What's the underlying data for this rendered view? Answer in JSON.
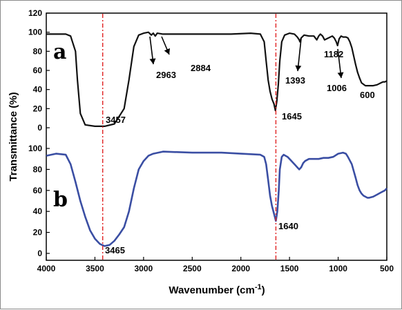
{
  "chart_data": {
    "type": "line",
    "xlabel": "Wavenumber (cm",
    "xlabel_sup": "-1",
    "xlabel_end": ")",
    "ylabel": "Transmittance (%)",
    "xlim": [
      4000,
      500
    ],
    "x_ticks": [
      4000,
      3500,
      3000,
      2500,
      2000,
      1500,
      1000,
      500
    ],
    "panels": [
      {
        "label": "a",
        "ylim": [
          0,
          120
        ],
        "y_ticks": [
          0,
          20,
          40,
          60,
          80,
          100,
          120
        ],
        "color": "#111111",
        "series": [
          {
            "x": [
              4000,
              3800,
              3750,
              3700,
              3680,
              3650,
              3600,
              3500,
              3400,
              3300,
              3200,
              3150,
              3100,
              3050,
              3000,
              2950,
              2920,
              2900,
              2880,
              2860,
              2800,
              2700,
              2500,
              2300,
              2100,
              1900,
              1800,
              1760,
              1740,
              1720,
              1700,
              1680,
              1660,
              1645,
              1630,
              1615,
              1600,
              1580,
              1550,
              1500,
              1450,
              1420,
              1400,
              1393,
              1380,
              1350,
              1300,
              1250,
              1220,
              1200,
              1182,
              1160,
              1140,
              1100,
              1060,
              1040,
              1020,
              1006,
              990,
              970,
              950,
              920,
              900,
              880,
              860,
              840,
              820,
              800,
              780,
              760,
              720,
              680,
              640,
              600,
              560,
              540,
              520,
              500
            ],
            "y": [
              98,
              98,
              96,
              80,
              50,
              15,
              3,
              1.5,
              1.5,
              4,
              20,
              50,
              85,
              97,
              99,
              100,
              97,
              99,
              96,
              99,
              98,
              98,
              98,
              98,
              98,
              99,
              98,
              90,
              70,
              50,
              38,
              30,
              25,
              18,
              28,
              45,
              70,
              90,
              97,
              99,
              98,
              95,
              92,
              90,
              94,
              97,
              96,
              96,
              92,
              96,
              98,
              96,
              92,
              94,
              96,
              94,
              90,
              86,
              93,
              96,
              95,
              95,
              94,
              90,
              84,
              75,
              66,
              58,
              52,
              47,
              44,
              44,
              44,
              45,
              47,
              48,
              48,
              49
            ]
          }
        ],
        "reference_line_x": 3420,
        "annotations": [
          {
            "text": "3457",
            "x": 3457
          },
          {
            "text": "2963",
            "x": 2963
          },
          {
            "text": "2884",
            "x": 2884
          },
          {
            "text": "1645",
            "x": 1645
          },
          {
            "text": "1393",
            "x": 1393
          },
          {
            "text": "1182",
            "x": 1182
          },
          {
            "text": "1006",
            "x": 1006
          },
          {
            "text": "600",
            "x": 600
          }
        ]
      },
      {
        "label": "b",
        "ylim": [
          0,
          100
        ],
        "y_ticks": [
          0,
          20,
          40,
          60,
          80,
          100
        ],
        "color": "#3a4ea3",
        "series": [
          {
            "x": [
              4000,
              3900,
              3800,
              3750,
              3700,
              3650,
              3600,
              3550,
              3500,
              3450,
              3400,
              3350,
              3300,
              3250,
              3200,
              3150,
              3100,
              3050,
              3000,
              2950,
              2900,
              2800,
              2500,
              2200,
              2000,
              1800,
              1760,
              1740,
              1720,
              1700,
              1680,
              1660,
              1640,
              1625,
              1610,
              1600,
              1580,
              1560,
              1520,
              1480,
              1460,
              1440,
              1420,
              1400,
              1380,
              1360,
              1340,
              1300,
              1250,
              1200,
              1150,
              1100,
              1050,
              1000,
              950,
              920,
              900,
              860,
              820,
              800,
              780,
              760,
              740,
              720,
              700,
              680,
              640,
              600,
              560,
              520,
              500
            ],
            "y": [
              93,
              95,
              94,
              85,
              68,
              50,
              35,
              22,
              14,
              9,
              7,
              8,
              12,
              18,
              25,
              40,
              62,
              80,
              88,
              93,
              95,
              97,
              96,
              96,
              95,
              94,
              92,
              85,
              70,
              55,
              45,
              38,
              31,
              40,
              60,
              80,
              92,
              94,
              92,
              88,
              86,
              84,
              82,
              80,
              82,
              86,
              88,
              90,
              90,
              90,
              91,
              91,
              92,
              95,
              96,
              95,
              92,
              85,
              72,
              65,
              60,
              57,
              55,
              54,
              53,
              53,
              54,
              56,
              58,
              60,
              62
            ]
          }
        ],
        "reference_line_x": 3420,
        "annotations": [
          {
            "text": "3465",
            "x": 3465
          },
          {
            "text": "1640",
            "x": 1640
          }
        ]
      }
    ],
    "second_reference_line_x": 1640,
    "reference_line_color": "#e02020"
  }
}
